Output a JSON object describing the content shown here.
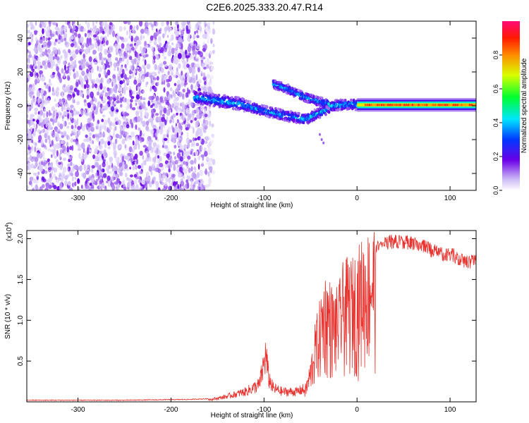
{
  "title": "C2E6.2025.333.20.47.R14",
  "colors": {
    "snr_line": "#e8332f",
    "axis": "#000000"
  },
  "chart_data": [
    {
      "type": "heatmap",
      "xlabel": "Height of straight line (km)",
      "ylabel": "Frequency (Hz)",
      "xlim": [
        -355,
        128
      ],
      "ylim": [
        -50,
        50
      ],
      "xticks": [
        -300,
        -200,
        -100,
        0,
        100
      ],
      "yticks": [
        -40,
        -20,
        0,
        20,
        40
      ],
      "colorbar": {
        "label": "Normalized spectral amplitude",
        "range": [
          0,
          1
        ],
        "ticks": [
          "0.0",
          "0.2",
          "0.4",
          "0.6",
          "0.8"
        ],
        "tick_values": [
          0,
          0.2,
          0.4,
          0.6,
          0.8
        ]
      },
      "features": {
        "noise_region_x": [
          -355,
          -160
        ],
        "main_branch": [
          [
            -175,
            5
          ],
          [
            -150,
            3
          ],
          [
            -125,
            1
          ],
          [
            -100,
            -3
          ],
          [
            -75,
            -6
          ],
          [
            -55,
            -8
          ],
          [
            -40,
            -4
          ],
          [
            -25,
            0
          ],
          [
            -10,
            1
          ],
          [
            0,
            0.5
          ],
          [
            128,
            0.5
          ]
        ],
        "upper_branch": [
          [
            -90,
            13
          ],
          [
            -75,
            10
          ],
          [
            -60,
            6
          ],
          [
            -45,
            3
          ],
          [
            -30,
            1
          ]
        ],
        "tail_peak_amplitude": 0.95
      }
    },
    {
      "type": "line",
      "xlabel": "Height of straight line (km)",
      "ylabel": "SNR (10 * v/v)",
      "y_multiplier": "(x10^4)",
      "xlim": [
        -355,
        128
      ],
      "ylim": [
        0,
        2.1
      ],
      "xticks": [
        -300,
        -200,
        -100,
        0,
        100
      ],
      "yticks": [
        "0.5",
        "1.0",
        "1.5",
        "2.0"
      ],
      "ytick_values": [
        0.5,
        1.0,
        1.5,
        2.0
      ],
      "series": [
        {
          "values_x": [
            -355,
            -250,
            -180,
            -155,
            -140,
            -120,
            -105,
            -98,
            -95,
            -90,
            -80,
            -65,
            -55,
            -50,
            -45,
            -40,
            -35,
            -30,
            -25,
            -20,
            -15,
            -10,
            -5,
            0,
            5,
            10,
            15,
            20,
            25,
            30,
            35,
            40,
            50,
            60,
            70,
            80,
            90,
            100,
            110,
            120,
            128
          ],
          "values_y": [
            0.02,
            0.02,
            0.03,
            0.04,
            0.08,
            0.15,
            0.25,
            0.7,
            0.35,
            0.2,
            0.15,
            0.15,
            0.2,
            0.45,
            0.85,
            1.1,
            1.4,
            1.35,
            1.2,
            1.25,
            1.5,
            1.55,
            1.55,
            1.65,
            1.75,
            1.8,
            1.9,
            1.95,
            2.0,
            2.03,
            2.05,
            2.05,
            2.05,
            2.03,
            2.0,
            1.95,
            1.9,
            1.9,
            1.85,
            1.8,
            1.85
          ]
        }
      ]
    }
  ]
}
